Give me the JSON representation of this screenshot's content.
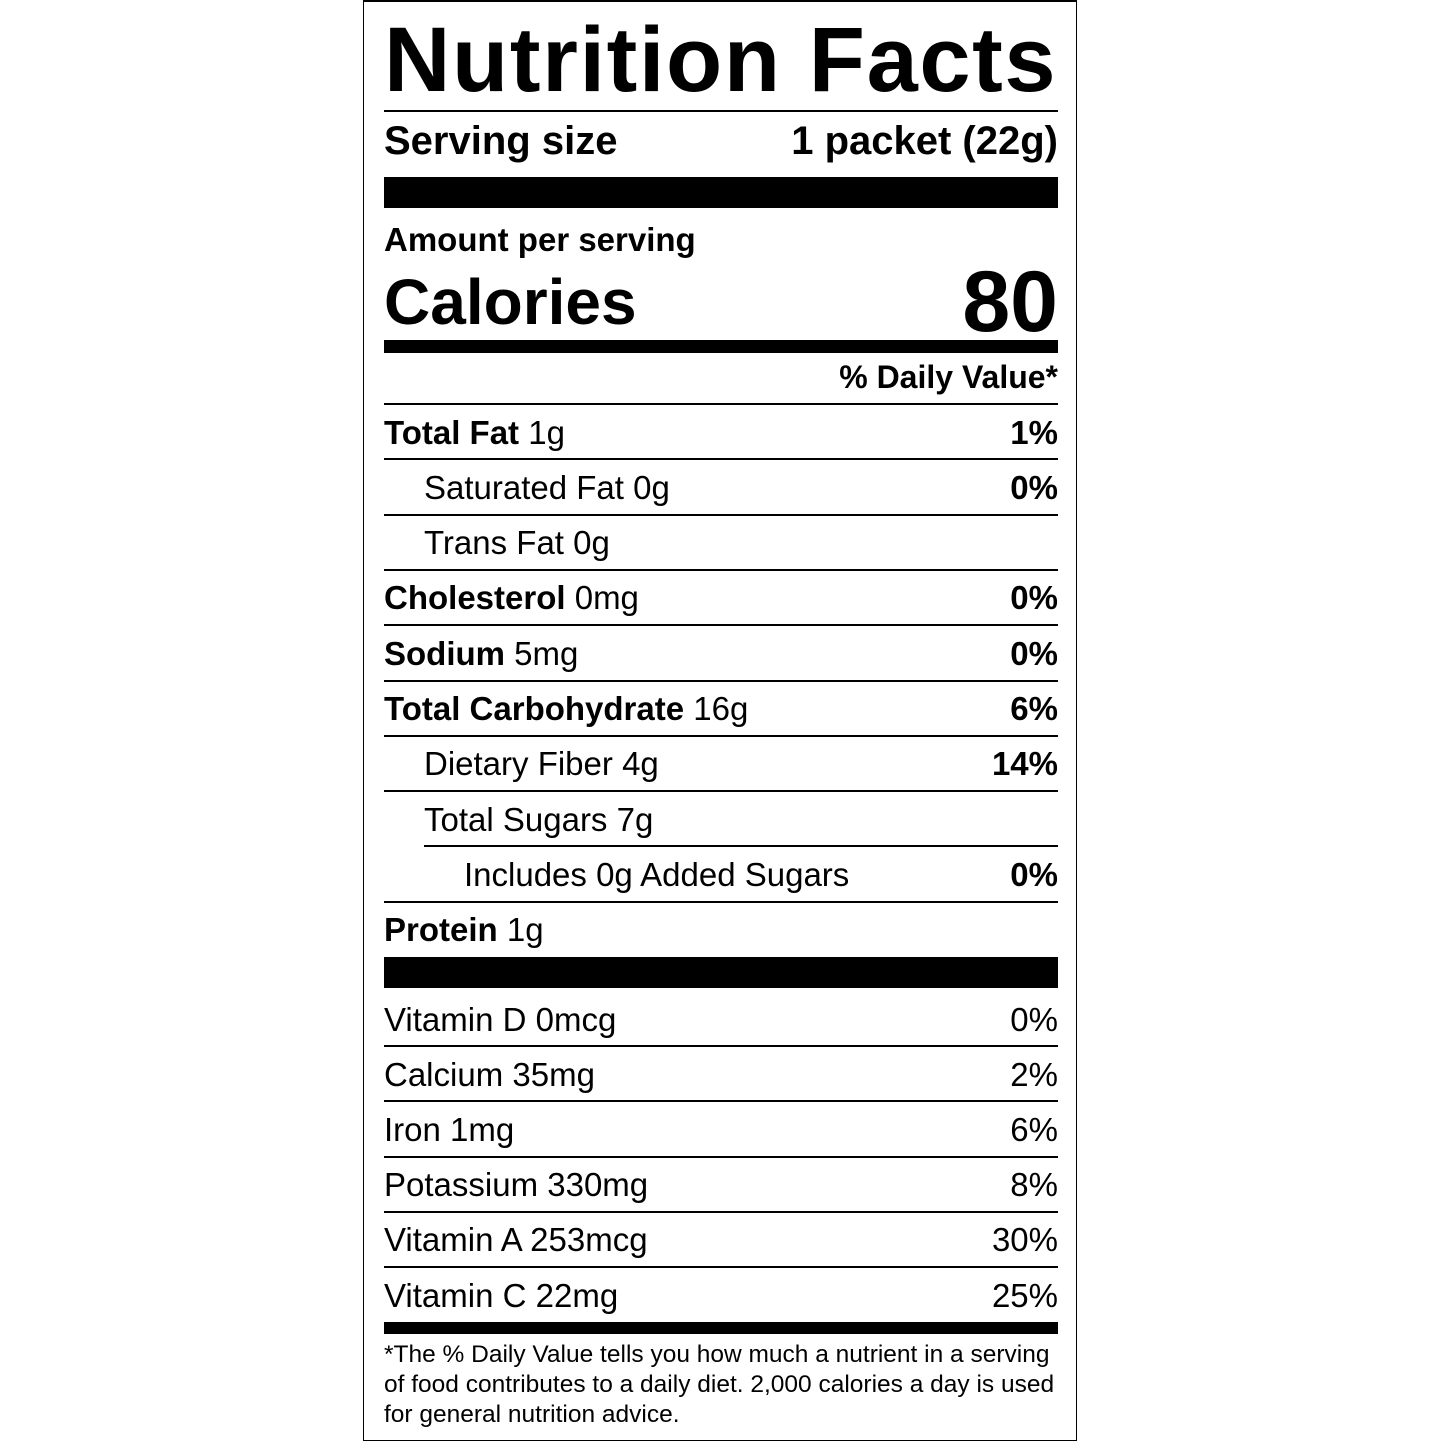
{
  "title": "Nutrition Facts",
  "serving": {
    "label": "Serving size",
    "value": "1 packet (22g)"
  },
  "amount_label": "Amount per serving",
  "calories": {
    "label": "Calories",
    "value": "80"
  },
  "dv_header": "% Daily Value*",
  "nutrients": [
    {
      "name": "Total Fat",
      "amount": "1g",
      "dv": "1%"
    },
    {
      "name": "Saturated Fat",
      "amount": "0g",
      "dv": "0%"
    },
    {
      "name": "Trans Fat",
      "amount": "0g"
    },
    {
      "name": "Cholesterol",
      "amount": "0mg",
      "dv": "0%"
    },
    {
      "name": "Sodium",
      "amount": "5mg",
      "dv": "0%"
    },
    {
      "name": "Total Carbohydrate",
      "amount": "16g",
      "dv": "6%"
    },
    {
      "name": "Dietary Fiber",
      "amount": "4g",
      "dv": "14%"
    },
    {
      "name": "Total Sugars",
      "amount": "7g"
    },
    {
      "name": "Includes 0g Added Sugars",
      "dv": "0%"
    },
    {
      "name": "Protein",
      "amount": "1g"
    }
  ],
  "vitamins": [
    {
      "name": "Vitamin D",
      "amount": "0mcg",
      "dv": "0%"
    },
    {
      "name": "Calcium",
      "amount": "35mg",
      "dv": "2%"
    },
    {
      "name": "Iron",
      "amount": "1mg",
      "dv": "6%"
    },
    {
      "name": "Potassium",
      "amount": "330mg",
      "dv": "8%"
    },
    {
      "name": "Vitamin A",
      "amount": "253mcg",
      "dv": "30%"
    },
    {
      "name": "Vitamin C",
      "amount": "22mg",
      "dv": "25%"
    }
  ],
  "footnote": "*The % Daily Value tells you how much a nutrient in a serving of food contributes to a daily diet. 2,000 calories a day is used for general nutrition advice."
}
